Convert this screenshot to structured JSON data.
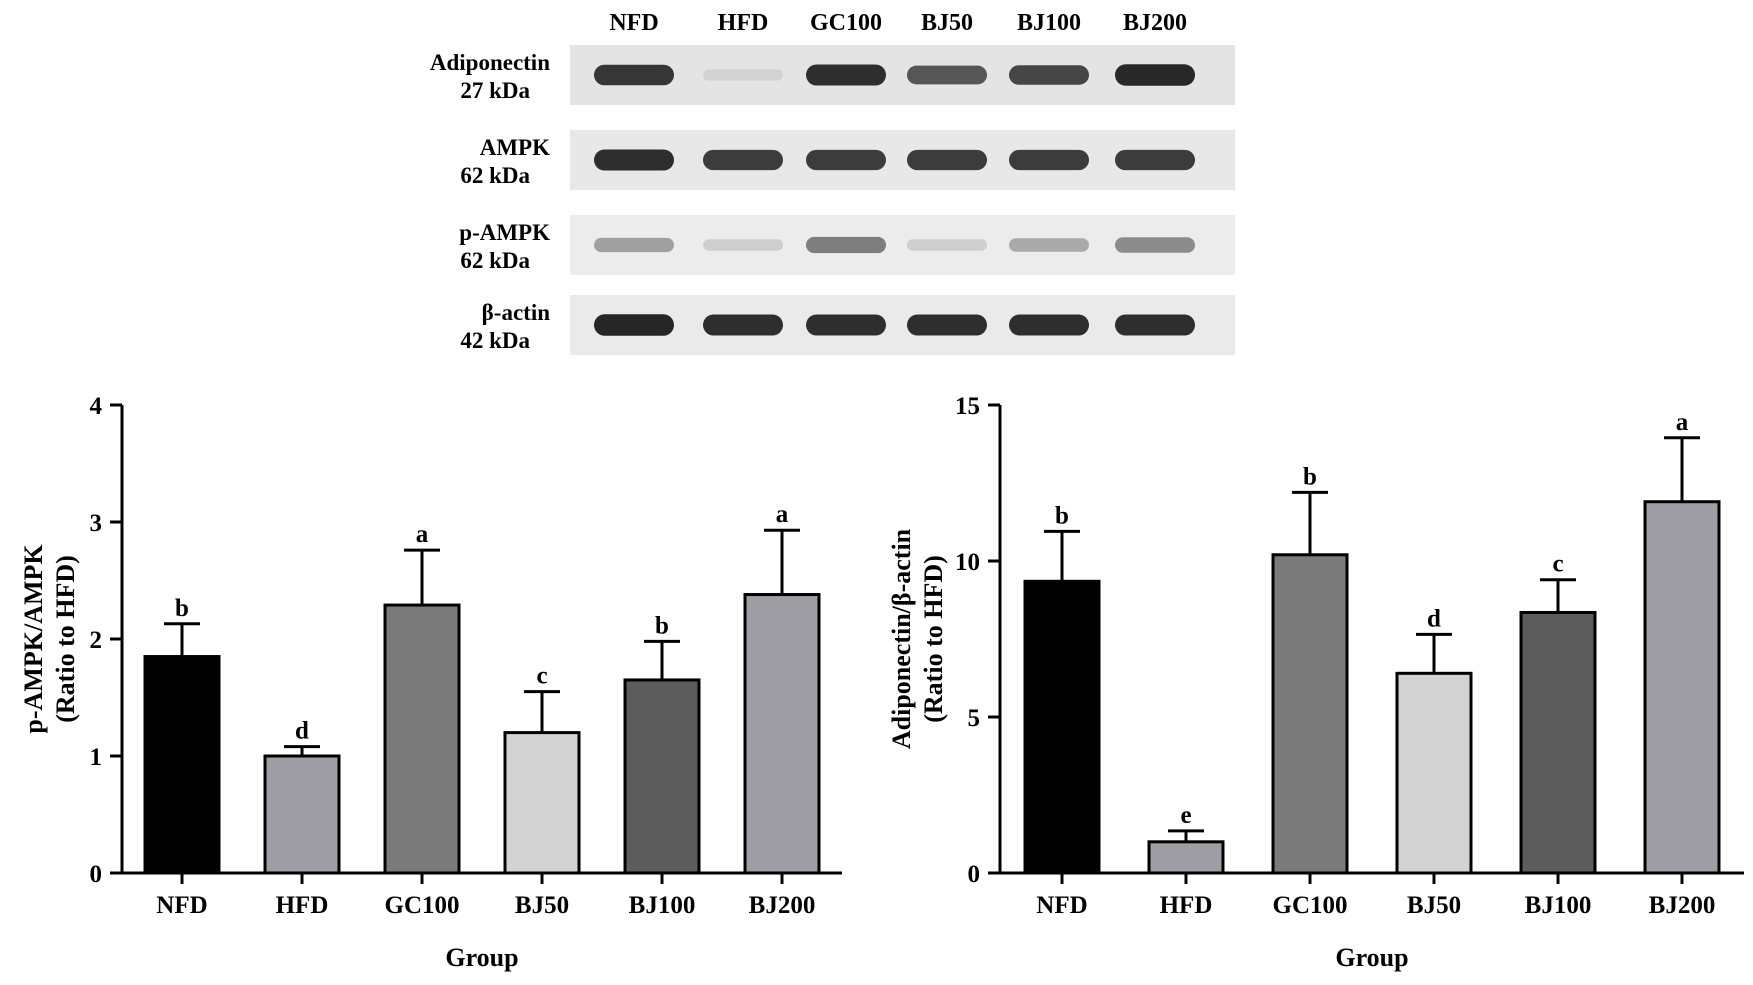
{
  "blot": {
    "lanes": [
      "NFD",
      "HFD",
      "GC100",
      "BJ50",
      "BJ100",
      "BJ200"
    ],
    "rows": [
      {
        "protein": "Adiponectin",
        "size": "27 kDa",
        "intensity": [
          0.88,
          0.1,
          0.92,
          0.72,
          0.8,
          0.95
        ],
        "bg": "#e4e4e4"
      },
      {
        "protein": "AMPK",
        "size": "62 kDa",
        "intensity": [
          0.92,
          0.85,
          0.85,
          0.85,
          0.85,
          0.85
        ],
        "bg": "#e8e8e8"
      },
      {
        "protein": "p-AMPK",
        "size": "62 kDa",
        "intensity": [
          0.35,
          0.12,
          0.52,
          0.12,
          0.3,
          0.45
        ],
        "bg": "#ececec"
      },
      {
        "protein": "β-actin",
        "size": "42 kDa",
        "intensity": [
          0.96,
          0.92,
          0.92,
          0.92,
          0.92,
          0.92
        ],
        "bg": "#eaeaea"
      }
    ]
  },
  "colors": {
    "NFD": "#000000",
    "HFD": "#9d9da3",
    "GC100": "#7b7b7b",
    "BJ50": "#d3d3d3",
    "BJ100": "#5c5c5c",
    "BJ200": "#9d9da3"
  },
  "chart_data": [
    {
      "type": "bar",
      "categories": [
        "NFD",
        "HFD",
        "GC100",
        "BJ50",
        "BJ100",
        "BJ200"
      ],
      "values": [
        1.85,
        1.0,
        2.29,
        1.2,
        1.65,
        2.38
      ],
      "errors": [
        0.28,
        0.08,
        0.47,
        0.35,
        0.33,
        0.55
      ],
      "significance": [
        "b",
        "d",
        "a",
        "c",
        "b",
        "a"
      ],
      "xlabel": "Group",
      "ylabel": [
        "p-AMPK/AMPK",
        "(Ratio to HFD)"
      ],
      "ylim": [
        0,
        4
      ],
      "yticks": [
        0,
        1,
        2,
        3,
        4
      ]
    },
    {
      "type": "bar",
      "categories": [
        "NFD",
        "HFD",
        "GC100",
        "BJ50",
        "BJ100",
        "BJ200"
      ],
      "values": [
        9.35,
        1.0,
        10.2,
        6.4,
        8.35,
        11.9
      ],
      "errors": [
        1.6,
        0.35,
        2.0,
        1.25,
        1.05,
        2.05
      ],
      "significance": [
        "b",
        "e",
        "b",
        "d",
        "c",
        "a"
      ],
      "xlabel": "Group",
      "ylabel": [
        "Adiponectin/β-actin",
        "(Ratio to HFD)"
      ],
      "ylim": [
        0,
        15
      ],
      "yticks": [
        0,
        5,
        10,
        15
      ]
    }
  ]
}
